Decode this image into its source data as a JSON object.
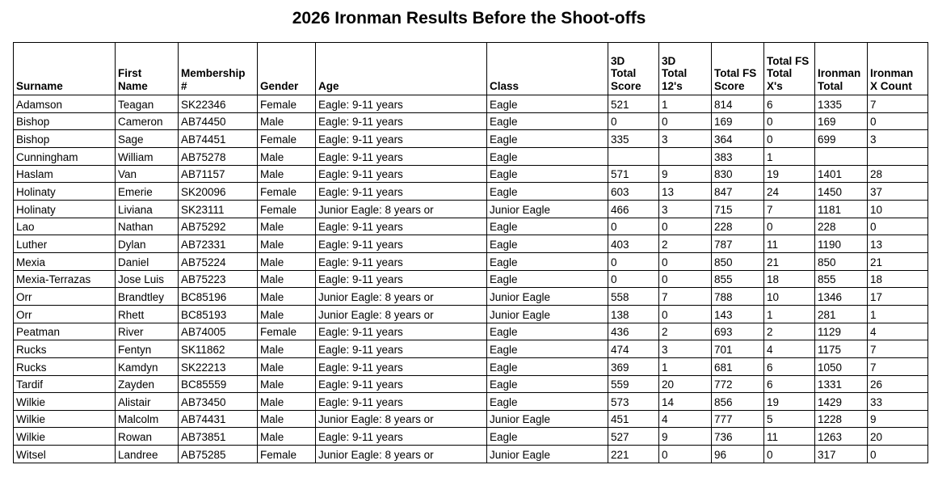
{
  "title": "2026 Ironman Results Before the Shoot-offs",
  "colors": {
    "background": "#ffffff",
    "text": "#000000",
    "border": "#000000"
  },
  "table": {
    "columns": [
      {
        "id": "surname",
        "label": "Surname"
      },
      {
        "id": "first-name",
        "label": "First\nName"
      },
      {
        "id": "membership-number",
        "label": "Membership\n#"
      },
      {
        "id": "gender",
        "label": "Gender"
      },
      {
        "id": "age",
        "label": "Age"
      },
      {
        "id": "class",
        "label": "Class"
      },
      {
        "id": "3d-total-score",
        "label": "3D\nTotal\nScore"
      },
      {
        "id": "3d-total-12s",
        "label": "3D\nTotal\n12's"
      },
      {
        "id": "total-fs-score",
        "label": "Total FS\nScore"
      },
      {
        "id": "total-fs-total-xs",
        "label": "Total FS\nTotal\nX's"
      },
      {
        "id": "ironman-total",
        "label": "Ironman\nTotal"
      },
      {
        "id": "ironman-x-count",
        "label": "Ironman\nX Count"
      }
    ],
    "rows": [
      [
        "Adamson",
        "Teagan",
        "SK22346",
        "Female",
        "Eagle: 9-11 years",
        "Eagle",
        "521",
        "1",
        "814",
        "6",
        "1335",
        "7"
      ],
      [
        "Bishop",
        "Cameron",
        "AB74450",
        "Male",
        "Eagle: 9-11 years",
        "Eagle",
        "0",
        "0",
        "169",
        "0",
        "169",
        "0"
      ],
      [
        "Bishop",
        "Sage",
        "AB74451",
        "Female",
        "Eagle: 9-11 years",
        "Eagle",
        "335",
        "3",
        "364",
        "0",
        "699",
        "3"
      ],
      [
        "Cunningham",
        "William",
        "AB75278",
        "Male",
        "Eagle: 9-11 years",
        "Eagle",
        "",
        "",
        "383",
        "1",
        "",
        ""
      ],
      [
        "Haslam",
        "Van",
        "AB71157",
        "Male",
        "Eagle: 9-11 years",
        "Eagle",
        "571",
        "9",
        "830",
        "19",
        "1401",
        "28"
      ],
      [
        "Holinaty",
        "Emerie",
        "SK20096",
        "Female",
        "Eagle: 9-11 years",
        "Eagle",
        "603",
        "13",
        "847",
        "24",
        "1450",
        "37"
      ],
      [
        "Holinaty",
        "Liviana",
        "SK23111",
        "Female",
        "Junior Eagle: 8 years or",
        "Junior Eagle",
        "466",
        "3",
        "715",
        "7",
        "1181",
        "10"
      ],
      [
        "Lao",
        "Nathan",
        "AB75292",
        "Male",
        "Eagle: 9-11 years",
        "Eagle",
        "0",
        "0",
        "228",
        "0",
        "228",
        "0"
      ],
      [
        "Luther",
        "Dylan",
        "AB72331",
        "Male",
        "Eagle: 9-11 years",
        "Eagle",
        "403",
        "2",
        "787",
        "11",
        "1190",
        "13"
      ],
      [
        "Mexia",
        "Daniel",
        "AB75224",
        "Male",
        "Eagle: 9-11 years",
        "Eagle",
        "0",
        "0",
        "850",
        "21",
        "850",
        "21"
      ],
      [
        "Mexia-Terrazas",
        "Jose Luis",
        "AB75223",
        "Male",
        "Eagle: 9-11 years",
        "Eagle",
        "0",
        "0",
        "855",
        "18",
        "855",
        "18"
      ],
      [
        "Orr",
        "Brandtley",
        "BC85196",
        "Male",
        "Junior Eagle: 8 years or",
        "Junior Eagle",
        "558",
        "7",
        "788",
        "10",
        "1346",
        "17"
      ],
      [
        "Orr",
        "Rhett",
        "BC85193",
        "Male",
        "Junior Eagle: 8 years or",
        "Junior Eagle",
        "138",
        "0",
        "143",
        "1",
        "281",
        "1"
      ],
      [
        "Peatman",
        "River",
        "AB74005",
        "Female",
        "Eagle: 9-11 years",
        "Eagle",
        "436",
        "2",
        "693",
        "2",
        "1129",
        "4"
      ],
      [
        "Rucks",
        "Fentyn",
        "SK11862",
        "Male",
        "Eagle: 9-11 years",
        "Eagle",
        "474",
        "3",
        "701",
        "4",
        "1175",
        "7"
      ],
      [
        "Rucks",
        "Kamdyn",
        "SK22213",
        "Male",
        "Eagle: 9-11 years",
        "Eagle",
        "369",
        "1",
        "681",
        "6",
        "1050",
        "7"
      ],
      [
        "Tardif",
        "Zayden",
        "BC85559",
        "Male",
        "Eagle: 9-11 years",
        "Eagle",
        "559",
        "20",
        "772",
        "6",
        "1331",
        "26"
      ],
      [
        "Wilkie",
        "Alistair",
        "AB73450",
        "Male",
        "Eagle: 9-11 years",
        "Eagle",
        "573",
        "14",
        "856",
        "19",
        "1429",
        "33"
      ],
      [
        "Wilkie",
        "Malcolm",
        "AB74431",
        "Male",
        "Junior Eagle: 8 years or",
        "Junior Eagle",
        "451",
        "4",
        "777",
        "5",
        "1228",
        "9"
      ],
      [
        "Wilkie",
        "Rowan",
        "AB73851",
        "Male",
        "Eagle: 9-11 years",
        "Eagle",
        "527",
        "9",
        "736",
        "11",
        "1263",
        "20"
      ],
      [
        "Witsel",
        "Landree",
        "AB75285",
        "Female",
        "Junior Eagle: 8 years or",
        "Junior Eagle",
        "221",
        "0",
        "96",
        "0",
        "317",
        "0"
      ]
    ]
  }
}
